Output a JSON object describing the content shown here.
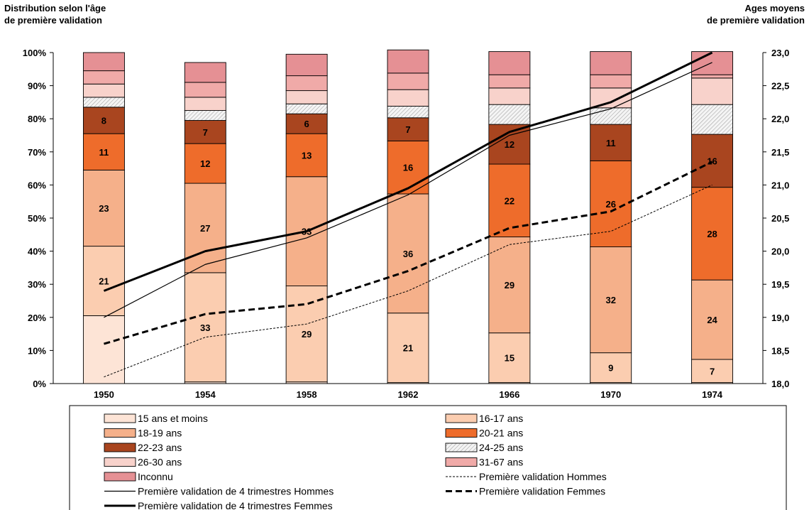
{
  "chart_data": {
    "type": "bar",
    "stacked": true,
    "percent_scale": true,
    "left_axis_title": [
      "Distribution selon l'âge",
      "de première validation"
    ],
    "right_axis_title": [
      "Ages moyens",
      "de première validation"
    ],
    "categories": [
      "1950",
      "1954",
      "1958",
      "1962",
      "1966",
      "1970",
      "1974"
    ],
    "left_ylim": [
      0,
      100
    ],
    "left_ticks": [
      "0%",
      "10%",
      "20%",
      "30%",
      "40%",
      "50%",
      "60%",
      "70%",
      "80%",
      "90%",
      "100%"
    ],
    "right_ylim": [
      18.0,
      23.0
    ],
    "right_ticks": [
      "18,0",
      "18,5",
      "19,0",
      "19,5",
      "20,0",
      "20,5",
      "21,0",
      "21,5",
      "22,0",
      "22,5",
      "23,0"
    ],
    "bar_series": [
      {
        "name": "15 ans et moins",
        "color": "#fde4d6",
        "values": [
          20.5,
          0.5,
          0.5,
          0.3,
          0.3,
          0.3,
          0.3
        ],
        "labels": [
          "",
          "",
          "",
          "",
          "",
          "",
          ""
        ]
      },
      {
        "name": "16-17 ans",
        "color": "#fbcdb0",
        "values": [
          21,
          33,
          29,
          21,
          15,
          9,
          7
        ],
        "labels": [
          "21",
          "33",
          "29",
          "21",
          "15",
          "9",
          "7"
        ]
      },
      {
        "name": "18-19 ans",
        "color": "#f5b08a",
        "values": [
          23,
          27,
          33,
          36,
          29,
          32,
          24
        ],
        "labels": [
          "23",
          "27",
          "33",
          "36",
          "29",
          "32",
          "24"
        ]
      },
      {
        "name": "20-21 ans",
        "color": "#ee6c2b",
        "values": [
          11,
          12,
          13,
          16,
          22,
          26,
          28
        ],
        "labels": [
          "11",
          "12",
          "13",
          "16",
          "22",
          "26",
          "28"
        ]
      },
      {
        "name": "22-23 ans",
        "color": "#a9451f",
        "values": [
          8,
          7,
          6,
          7,
          12,
          11,
          16
        ],
        "labels": [
          "8",
          "7",
          "6",
          "7",
          "12",
          "11",
          "16"
        ]
      },
      {
        "name": "24-25 ans",
        "color": "#e6e6e6",
        "pattern": true,
        "values": [
          3,
          3,
          3,
          3.5,
          6,
          5,
          9
        ],
        "labels": [
          "",
          "",
          "",
          "",
          "",
          "",
          ""
        ]
      },
      {
        "name": "26-30 ans",
        "color": "#f8d2cb",
        "values": [
          4,
          4,
          4,
          5,
          5,
          6,
          8
        ],
        "labels": [
          "",
          "",
          "",
          "",
          "",
          "",
          ""
        ]
      },
      {
        "name": "31-67 ans",
        "color": "#f0aaa8",
        "values": [
          4,
          4.5,
          4.5,
          5,
          4,
          4,
          1
        ],
        "labels": [
          "",
          "",
          "",
          "",
          "",
          "",
          ""
        ]
      },
      {
        "name": "Inconnu",
        "color": "#e59094",
        "values": [
          5.5,
          6,
          6.5,
          7,
          7,
          7,
          7
        ],
        "labels": [
          "",
          "",
          "",
          "",
          "",
          "",
          ""
        ]
      }
    ],
    "line_series": [
      {
        "name": "Première validation Hommes",
        "style": "dotted",
        "values": [
          18.1,
          18.7,
          18.9,
          19.4,
          20.1,
          20.3,
          21.0
        ]
      },
      {
        "name": "Première validation Femmes",
        "style": "dashed",
        "values": [
          18.6,
          19.05,
          19.2,
          19.7,
          20.35,
          20.6,
          21.35
        ]
      },
      {
        "name": "Première validation de 4 trimestres Hommes",
        "style": "thin",
        "values": [
          19.0,
          19.8,
          20.2,
          20.85,
          21.75,
          22.15,
          22.85
        ]
      },
      {
        "name": "Première validation de 4 trimestres Femmes",
        "style": "thick",
        "values": [
          19.4,
          20.0,
          20.3,
          20.95,
          21.8,
          22.25,
          23.0
        ]
      }
    ],
    "legend": {
      "rows": [
        [
          {
            "label": "15 ans et moins",
            "kind": "bar",
            "ref": 0
          },
          {
            "label": "16-17 ans",
            "kind": "bar",
            "ref": 1
          }
        ],
        [
          {
            "label": "18-19 ans",
            "kind": "bar",
            "ref": 2
          },
          {
            "label": "20-21 ans",
            "kind": "bar",
            "ref": 3
          }
        ],
        [
          {
            "label": "22-23 ans",
            "kind": "bar",
            "ref": 4
          },
          {
            "label": "24-25 ans",
            "kind": "bar",
            "ref": 5
          }
        ],
        [
          {
            "label": "26-30 ans",
            "kind": "bar",
            "ref": 6
          },
          {
            "label": "31-67 ans",
            "kind": "bar",
            "ref": 7
          }
        ],
        [
          {
            "label": "Inconnu",
            "kind": "bar",
            "ref": 8
          },
          {
            "label": "Première validation Hommes",
            "kind": "line",
            "ref": 0
          }
        ],
        [
          {
            "label": "Première validation de 4 trimestres Hommes",
            "kind": "line",
            "ref": 2
          },
          {
            "label": "Première validation Femmes",
            "kind": "line",
            "ref": 1
          }
        ],
        [
          {
            "label": "Première validation de 4 trimestres Femmes",
            "kind": "line",
            "ref": 3
          }
        ]
      ]
    }
  }
}
